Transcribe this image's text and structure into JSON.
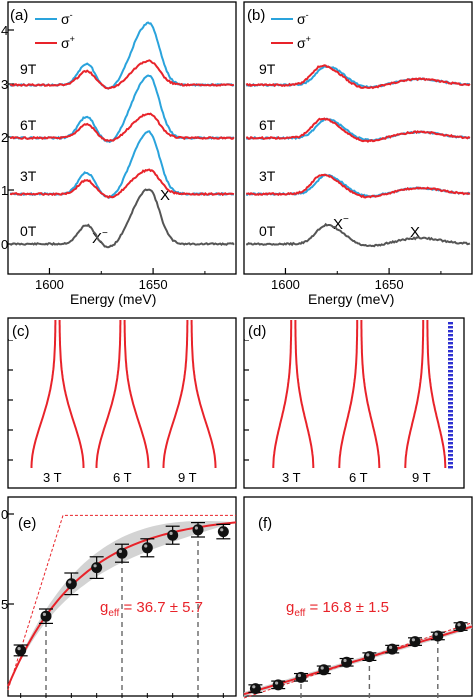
{
  "colors": {
    "sigma_minus": "#2aa3dc",
    "sigma_plus": "#e8232a",
    "zero_field": "#555555",
    "gray_fill": "#c8c8c8",
    "blue_edge": "#2c2fd0"
  },
  "panels": {
    "a": "(a)",
    "b": "(b)",
    "c": "(c)",
    "d": "(d)",
    "e": "(e)",
    "f": "(f)"
  },
  "legend": {
    "minus": "σ",
    "minus_sup": "-",
    "plus": "σ",
    "plus_sup": "+"
  },
  "xlabel": "Energy (meV)",
  "field_labels": [
    "0T",
    "3T",
    "6T",
    "9T"
  ],
  "peak_labels": {
    "trion": "X",
    "trion_sup": "−",
    "exciton": "X"
  },
  "y_ticks_a": [
    "0",
    "1",
    "2",
    "3",
    "4"
  ],
  "y_ticks_b": [],
  "x_ticks": [
    "1600",
    "1650"
  ],
  "bar_labels": [
    "3 T",
    "6 T",
    "9 T"
  ],
  "fit_e": {
    "g": "g",
    "sub": "eff",
    "value": " = 36.7 ± 5.7"
  },
  "fit_f": {
    "g": "g",
    "sub": "eff",
    "value": " = 16.8 ± 1.5"
  },
  "y_ticks_e": [
    "0",
    "5"
  ],
  "chart_data": [
    {
      "panel": "a",
      "type": "line",
      "xlabel": "Energy (meV)",
      "xlim": [
        1580,
        1690
      ],
      "series": [
        {
          "name": "σ-",
          "fields_T": [
            3,
            6,
            9
          ],
          "trion_peak_meV": 1618,
          "exciton_peak_meV": 1648
        },
        {
          "name": "σ+",
          "fields_T": [
            3,
            6,
            9
          ],
          "trion_peak_meV": 1618,
          "exciton_peak_meV": 1648
        },
        {
          "name": "0T",
          "trion_peak_meV": 1618,
          "exciton_peak_meV": 1648
        }
      ]
    },
    {
      "panel": "b",
      "type": "line",
      "xlabel": "Energy (meV)",
      "xlim": [
        1580,
        1690
      ],
      "series": [
        {
          "name": "σ-",
          "fields_T": [
            3,
            6,
            9
          ],
          "trion_peak_meV": 1620,
          "exciton_peak_meV": 1665
        },
        {
          "name": "σ+",
          "fields_T": [
            3,
            6,
            9
          ],
          "trion_peak_meV": 1620,
          "exciton_peak_meV": 1665
        },
        {
          "name": "0T",
          "trion_peak_meV": 1620,
          "exciton_peak_meV": 1665
        }
      ]
    },
    {
      "panel": "e",
      "type": "scatter",
      "ylim": [
        0,
        1
      ],
      "x": [
        1,
        2,
        3,
        4,
        5,
        6,
        7,
        8,
        9
      ],
      "y": [
        0.22,
        0.41,
        0.59,
        0.68,
        0.76,
        0.79,
        0.86,
        0.89,
        0.88
      ],
      "yerr": [
        0.03,
        0.04,
        0.06,
        0.06,
        0.05,
        0.05,
        0.05,
        0.04,
        0.04
      ]
    },
    {
      "panel": "f",
      "type": "scatter",
      "ylim": [
        0,
        1
      ],
      "x": [
        1,
        2,
        3,
        4,
        5,
        6,
        7,
        8,
        9,
        10
      ],
      "y": [
        0.05,
        0.07,
        0.11,
        0.15,
        0.19,
        0.22,
        0.26,
        0.3,
        0.33,
        0.38
      ],
      "yerr": [
        0.02,
        0.02,
        0.02,
        0.02,
        0.02,
        0.02,
        0.02,
        0.02,
        0.02,
        0.02
      ]
    }
  ]
}
